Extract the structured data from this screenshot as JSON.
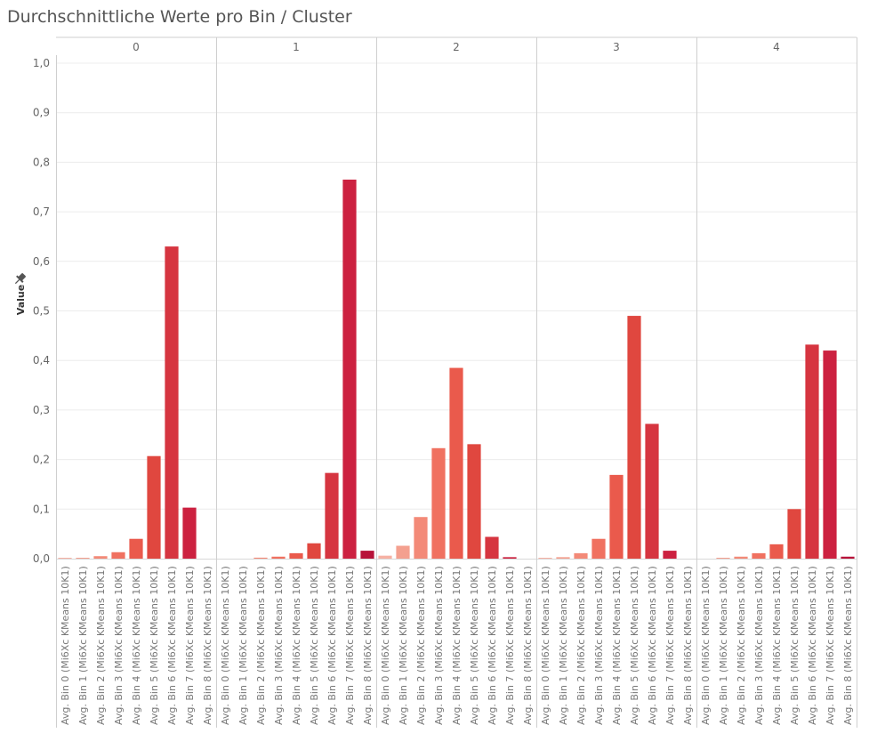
{
  "title": "Durchschnittliche Werte pro Bin / Cluster",
  "colors": {
    "palette": [
      "#f6b1a3",
      "#f4a08f",
      "#f38a78",
      "#f07160",
      "#ea5a4c",
      "#e0473f",
      "#d63540",
      "#cc2140",
      "#b8133a"
    ],
    "gridline": "#ececec",
    "divider": "#cfcfcf",
    "text": "#666666"
  },
  "pin_icon": "pin-icon",
  "chart_data": {
    "type": "bar",
    "facet_label": "Cluster",
    "panels": [
      "0",
      "1",
      "2",
      "3",
      "4"
    ],
    "categories": [
      "Avg. Bin 0 (Mi6Xc KMeans 10K1)",
      "Avg. Bin 1 (Mi6Xc KMeans 10K1)",
      "Avg. Bin 2 (Mi6Xc KMeans 10K1)",
      "Avg. Bin 3 (Mi6Xc KMeans 10K1)",
      "Avg. Bin 4 (Mi6Xc KMeans 10K1)",
      "Avg. Bin 5 (Mi6Xc KMeans 10K1)",
      "Avg. Bin 6 (Mi6Xc KMeans 10K1)",
      "Avg. Bin 7 (Mi6Xc KMeans 10K1)",
      "Avg. Bin 8 (Mi6Xc KMeans 10K1)"
    ],
    "series": [
      {
        "panel": "0",
        "values": [
          0.001,
          0.001,
          0.005,
          0.013,
          0.04,
          0.207,
          0.63,
          0.103,
          0.0
        ]
      },
      {
        "panel": "1",
        "values": [
          0.0,
          0.0,
          0.002,
          0.004,
          0.011,
          0.031,
          0.173,
          0.765,
          0.016
        ]
      },
      {
        "panel": "2",
        "values": [
          0.006,
          0.026,
          0.084,
          0.223,
          0.385,
          0.231,
          0.044,
          0.003,
          0.0
        ]
      },
      {
        "panel": "3",
        "values": [
          0.001,
          0.003,
          0.011,
          0.04,
          0.169,
          0.49,
          0.272,
          0.016,
          0.0
        ]
      },
      {
        "panel": "4",
        "values": [
          0.0,
          0.001,
          0.004,
          0.011,
          0.029,
          0.1,
          0.432,
          0.42,
          0.004
        ]
      }
    ],
    "ylabel": "Value",
    "ylim": [
      0,
      1.0
    ],
    "yticks": [
      "0,0",
      "0,1",
      "0,2",
      "0,3",
      "0,4",
      "0,5",
      "0,6",
      "0,7",
      "0,8",
      "0,9",
      "1,0"
    ],
    "grid": true,
    "legend": "none"
  }
}
